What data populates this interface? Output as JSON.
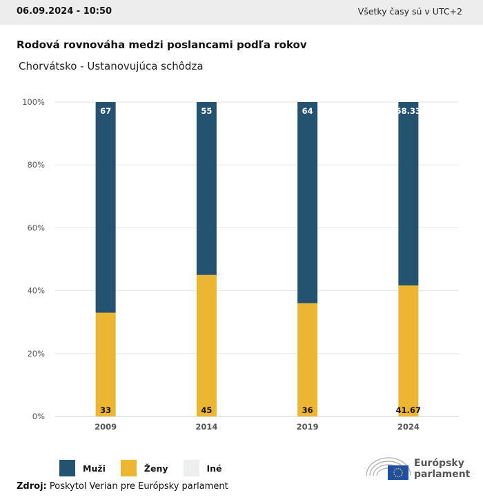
{
  "header": {
    "datetime": "06.09.2024 - 10:50",
    "timezone_note": "Všetky časy sú v UTC+2"
  },
  "title": "Rodová rovnováha medzi poslancami podľa rokov",
  "subtitle": "Chorvátsko - Ustanovujúca schôdza",
  "chart_data": {
    "type": "bar",
    "stacked": true,
    "categories": [
      "2009",
      "2014",
      "2019",
      "2024"
    ],
    "series": [
      {
        "name": "Ženy",
        "color": "#ecb532",
        "values": [
          33,
          45,
          36,
          41.67
        ],
        "labels": [
          "33",
          "45",
          "36",
          "41.67"
        ]
      },
      {
        "name": "Muži",
        "color": "#245372",
        "values": [
          67,
          55,
          64,
          58.33
        ],
        "labels": [
          "67",
          "55",
          "64",
          "58.33"
        ]
      },
      {
        "name": "Iné",
        "color": "#eceef0",
        "values": [
          0,
          0,
          0,
          0
        ]
      }
    ],
    "ylim": [
      0,
      100
    ],
    "yticks": [
      "0%",
      "20%",
      "40%",
      "60%",
      "80%",
      "100%"
    ],
    "grid": true,
    "legend": "bottom-left"
  },
  "legend": [
    {
      "label": "Muži",
      "color": "#245372"
    },
    {
      "label": "Ženy",
      "color": "#ecb532"
    },
    {
      "label": "Iné",
      "color": "#eceef0"
    }
  ],
  "source": {
    "label": "Zdroj:",
    "text": " Poskytol Verian pre Európsky parlament"
  },
  "logo": {
    "line1": "Európsky",
    "line2": "parlament"
  }
}
